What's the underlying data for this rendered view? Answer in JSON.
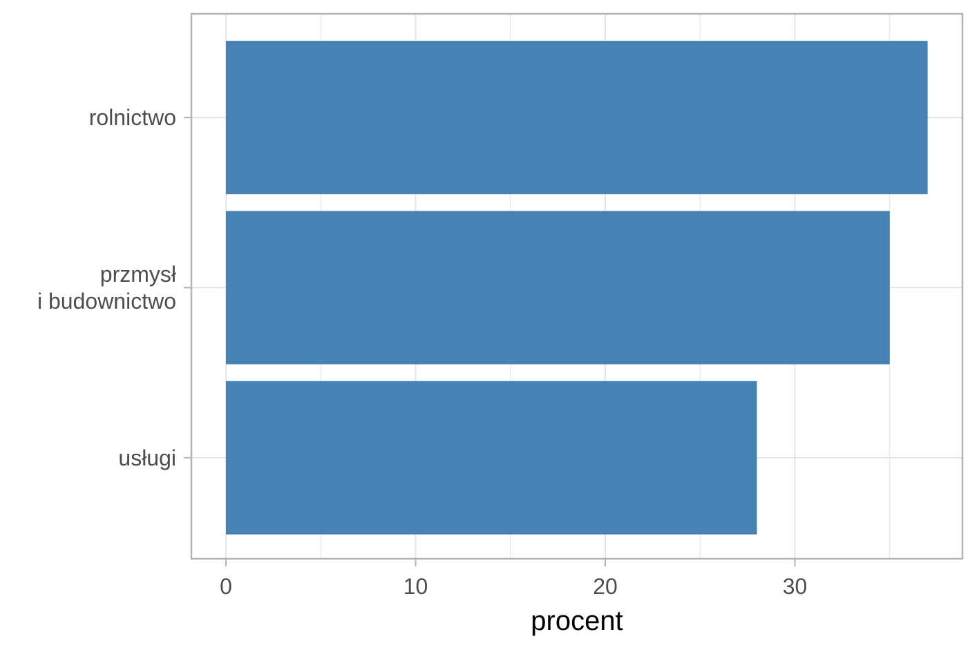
{
  "chart_data": {
    "type": "bar",
    "orientation": "horizontal",
    "categories": [
      [
        "rolnictwo"
      ],
      [
        "przmysł",
        "i budownictwo"
      ],
      [
        "usługi"
      ]
    ],
    "values": [
      37,
      35,
      28
    ],
    "title": "",
    "xlabel": "procent",
    "ylabel": "",
    "xlim": [
      0,
      40
    ],
    "xticks": [
      0,
      10,
      20,
      30
    ],
    "grid": true,
    "colors": {
      "bar": "#4682b4",
      "panel_border": "#b3b3b3",
      "grid": "#e0e0e0",
      "tick_text": "#4d4d4d"
    }
  }
}
